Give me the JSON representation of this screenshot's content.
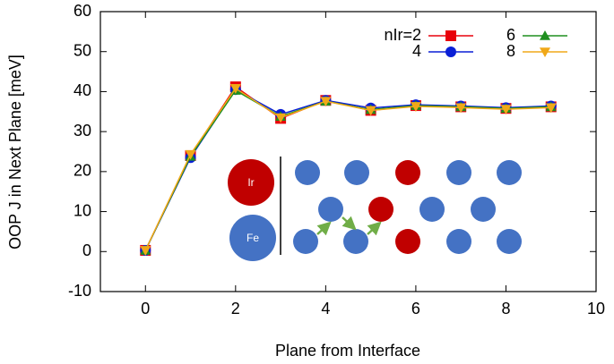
{
  "chart_data": {
    "type": "line",
    "x_label": "Plane from Interface",
    "y_label": "OOP J in Next Plane [meV]",
    "x": [
      0,
      1,
      2,
      3,
      4,
      5,
      6,
      7,
      8,
      9
    ],
    "series": [
      {
        "name": "nIr=2",
        "color": "#e8000b",
        "marker": "square",
        "values": [
          0.3,
          24,
          41.2,
          33.3,
          37.8,
          35.3,
          36.5,
          36.2,
          35.8,
          36.2
        ]
      },
      {
        "name": "4",
        "color": "#0a1fd6",
        "marker": "circle",
        "values": [
          0.3,
          23.5,
          40.5,
          34.3,
          37.8,
          35.9,
          36.7,
          36.4,
          36,
          36.4
        ]
      },
      {
        "name": "6",
        "color": "#1f8f1f",
        "marker": "triangle-up",
        "values": [
          0.3,
          23.8,
          40.3,
          33.8,
          37.6,
          35.5,
          36.5,
          36.2,
          35.8,
          36.2
        ]
      },
      {
        "name": "8",
        "color": "#f0a818",
        "marker": "triangle-down",
        "values": [
          0.3,
          24.3,
          40.8,
          33.5,
          37.6,
          35.3,
          36.3,
          36,
          35.6,
          36
        ]
      }
    ],
    "xlim": [
      -1,
      10
    ],
    "xticks": [
      0,
      2,
      4,
      6,
      8,
      10
    ],
    "ylim": [
      -10,
      60
    ],
    "yticks": [
      -10,
      0,
      10,
      20,
      30,
      40,
      50,
      60
    ],
    "annotations": [
      "Ir",
      "Fe"
    ]
  }
}
